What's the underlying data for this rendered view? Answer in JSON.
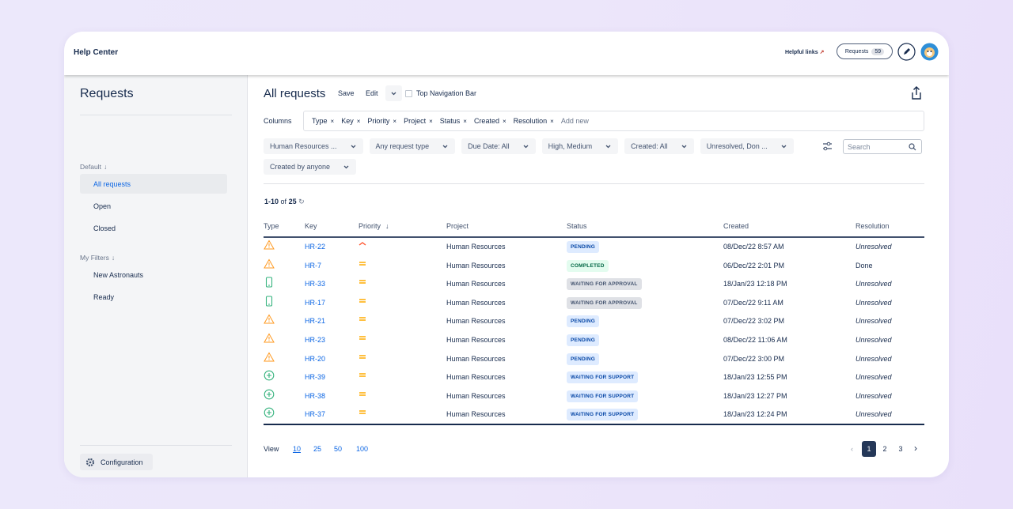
{
  "header": {
    "title": "Help Center",
    "helpful_links": "Helpful links",
    "requests_button": "Requests",
    "requests_count": "59"
  },
  "sidebar": {
    "title": "Requests",
    "groups": [
      {
        "label": "Default",
        "items": [
          "All requests",
          "Open",
          "Closed"
        ],
        "selected": 0
      },
      {
        "label": "My Filters",
        "items": [
          "New Astronauts",
          "Ready"
        ],
        "selected": -1
      }
    ],
    "configuration": "Configuration"
  },
  "main": {
    "title": "All requests",
    "actions": [
      "Save",
      "Edit"
    ],
    "checkbox_label": "Top Navigation Bar",
    "columns_label": "Columns",
    "columns": [
      "Type",
      "Key",
      "Priority",
      "Project",
      "Status",
      "Created",
      "Resolution"
    ],
    "add_new": "Add new",
    "filters": [
      "Human Resources ...",
      "Any request type",
      "Due Date: All",
      "High, Medium",
      "Created: All",
      "Unresolved, Don ...",
      "Created by anyone"
    ],
    "search_placeholder": "Search",
    "count": {
      "range": "1-10",
      "of": "of",
      "total": "25"
    }
  },
  "table": {
    "headers": [
      "Type",
      "Key",
      "Priority",
      "Project",
      "Status",
      "Created",
      "Resolution"
    ],
    "rows": [
      {
        "icon": "warning",
        "key": "HR-22",
        "priority": "high",
        "project": "Human Resources",
        "status": "PENDING",
        "tone": "blue",
        "created": "08/Dec/22 8:57 AM",
        "resolution": "Unresolved",
        "italic": true
      },
      {
        "icon": "warning",
        "key": "HR-7",
        "priority": "medium",
        "project": "Human Resources",
        "status": "COMPLETED",
        "tone": "green",
        "created": "06/Dec/22 2:01 PM",
        "resolution": "Done",
        "italic": false
      },
      {
        "icon": "phone",
        "key": "HR-33",
        "priority": "medium",
        "project": "Human Resources",
        "status": "WAITING FOR APPROVAL",
        "tone": "gray",
        "created": "18/Jan/23 12:18 PM",
        "resolution": "Unresolved",
        "italic": true
      },
      {
        "icon": "phone",
        "key": "HR-17",
        "priority": "medium",
        "project": "Human Resources",
        "status": "WAITING FOR APPROVAL",
        "tone": "gray",
        "created": "07/Dec/22 9:11 AM",
        "resolution": "Unresolved",
        "italic": true
      },
      {
        "icon": "warning",
        "key": "HR-21",
        "priority": "medium",
        "project": "Human Resources",
        "status": "PENDING",
        "tone": "blue",
        "created": "07/Dec/22 3:02 PM",
        "resolution": "Unresolved",
        "italic": true
      },
      {
        "icon": "warning",
        "key": "HR-23",
        "priority": "medium",
        "project": "Human Resources",
        "status": "PENDING",
        "tone": "blue",
        "created": "08/Dec/22 11:06 AM",
        "resolution": "Unresolved",
        "italic": true
      },
      {
        "icon": "warning",
        "key": "HR-20",
        "priority": "medium",
        "project": "Human Resources",
        "status": "PENDING",
        "tone": "blue",
        "created": "07/Dec/22 3:00 PM",
        "resolution": "Unresolved",
        "italic": true
      },
      {
        "icon": "plus",
        "key": "HR-39",
        "priority": "medium",
        "project": "Human Resources",
        "status": "WAITING FOR SUPPORT",
        "tone": "blue",
        "created": "18/Jan/23 12:55 PM",
        "resolution": "Unresolved",
        "italic": true
      },
      {
        "icon": "plus",
        "key": "HR-38",
        "priority": "medium",
        "project": "Human Resources",
        "status": "WAITING FOR SUPPORT",
        "tone": "blue",
        "created": "18/Jan/23 12:27 PM",
        "resolution": "Unresolved",
        "italic": true
      },
      {
        "icon": "plus",
        "key": "HR-37",
        "priority": "medium",
        "project": "Human Resources",
        "status": "WAITING FOR SUPPORT",
        "tone": "blue",
        "created": "18/Jan/23 12:24 PM",
        "resolution": "Unresolved",
        "italic": true
      }
    ]
  },
  "pagination": {
    "view_label": "View",
    "sizes": [
      "10",
      "25",
      "50",
      "100"
    ],
    "pages": [
      "1",
      "2",
      "3"
    ],
    "current": 0
  }
}
